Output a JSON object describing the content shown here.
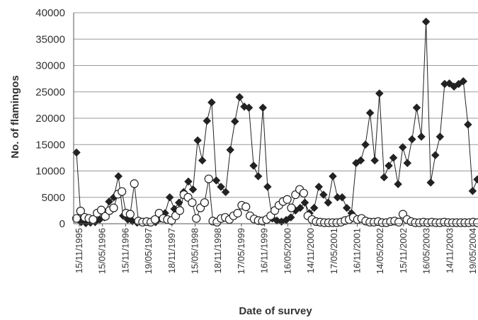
{
  "chart_data": {
    "type": "line",
    "ylabel": "No. of flamingos",
    "xlabel": "Date of survey",
    "ylim": [
      0,
      40000
    ],
    "ytick_values": [
      0,
      5000,
      10000,
      15000,
      20000,
      25000,
      30000,
      35000,
      40000
    ],
    "grid": "horizontal",
    "legend": "none",
    "x_tick_labels": [
      "15/11/1995",
      "15/05/1996",
      "15/11/1996",
      "19/05/1997",
      "18/11/1997",
      "15/05/1998",
      "18/11/1998",
      "17/05/1999",
      "16/11/1999",
      "16/05/2000",
      "14/11/2000",
      "17/05/2001",
      "16/11/2001",
      "14/05/2002",
      "15/11/2002",
      "16/05/2003",
      "14/11/2003",
      "19/05/2004"
    ],
    "series": [
      {
        "marker": "filled-diamond",
        "color": "#222222",
        "values": [
          13500,
          300,
          100,
          200,
          300,
          800,
          1200,
          4200,
          5000,
          9000,
          1500,
          800,
          500,
          200,
          300,
          400,
          200,
          300,
          1000,
          2000,
          5000,
          2800,
          4000,
          6000,
          8000,
          6500,
          15800,
          12000,
          19500,
          23000,
          8200,
          7000,
          6000,
          14000,
          19400,
          24000,
          22200,
          22000,
          11000,
          9000,
          22000,
          7000,
          1000,
          600,
          400,
          700,
          1200,
          2500,
          3000,
          4000,
          2000,
          3000,
          7000,
          5500,
          4000,
          9000,
          5000,
          5000,
          3000,
          2000,
          11500,
          12000,
          15000,
          21000,
          12000,
          24700,
          8800,
          11000,
          12500,
          7500,
          14500,
          11500,
          16000,
          22000,
          16500,
          38300,
          7800,
          13000,
          16500,
          26500,
          26600,
          26000,
          26500,
          27000,
          18800,
          6200,
          8400
        ]
      },
      {
        "marker": "open-circle",
        "color": "#222222",
        "values": [
          1000,
          2400,
          1200,
          1000,
          800,
          2000,
          2600,
          1400,
          2500,
          3000,
          5600,
          6100,
          2000,
          1800,
          7600,
          500,
          300,
          400,
          300,
          800,
          2000,
          1000,
          800,
          600,
          1500,
          2500,
          5500,
          5000,
          4000,
          1000,
          3000,
          4000,
          8500,
          500,
          300,
          1000,
          1200,
          800,
          1500,
          2000,
          3500,
          3200,
          1500,
          900,
          600,
          500,
          800,
          1500,
          2500,
          3500,
          4200,
          4600,
          3000,
          5500,
          6500,
          5800,
          1500,
          800,
          400,
          300,
          200,
          200,
          200,
          200,
          300,
          600,
          800,
          1200,
          800,
          1000,
          500,
          300,
          300,
          400,
          200,
          200,
          400,
          500,
          300,
          1800,
          800,
          400,
          200,
          200,
          300,
          200,
          300,
          200,
          200,
          300,
          200,
          200,
          200,
          200,
          200,
          200,
          300,
          200
        ]
      }
    ]
  }
}
